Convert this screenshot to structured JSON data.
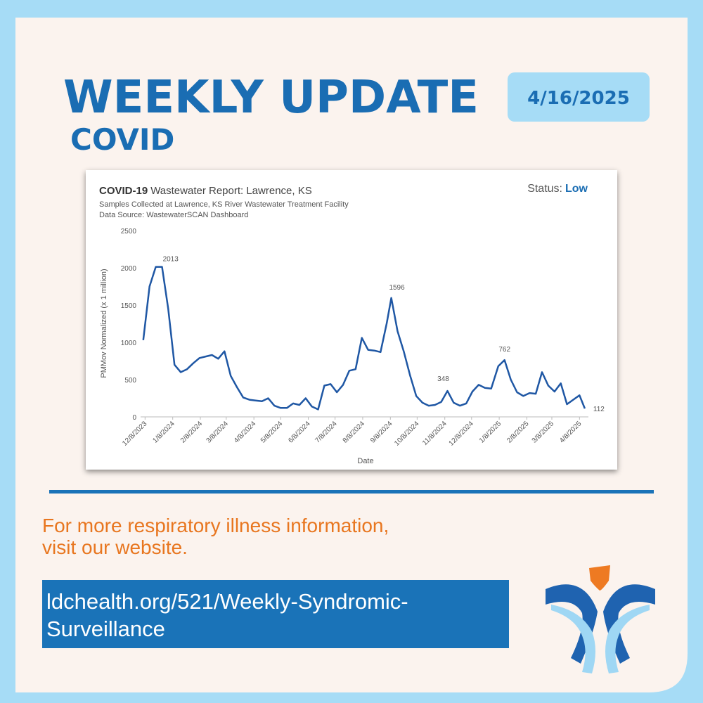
{
  "header": {
    "title": "WEEKLY UPDATE",
    "subtitle": "COVID",
    "date": "4/16/2025"
  },
  "chart_data": {
    "type": "line",
    "title_bold": "COVID-19",
    "title": "Wastewater Report: Lawrence, KS",
    "subtitle": "Samples Collected at Lawrence, KS River Wastewater Treatment Facility",
    "source": "Data Source: WastewaterSCAN Dashboard",
    "status_label": "Status:",
    "status": "Low",
    "xlabel": "Date",
    "ylabel": "PMMov Normalized (x 1 million)",
    "color": "#1f57a4",
    "x": [
      "12/6/2023",
      "12/13/2023",
      "12/20/2023",
      "12/27/2023",
      "1/3/2024",
      "1/10/2024",
      "1/17/2024",
      "1/24/2024",
      "1/31/2024",
      "2/7/2024",
      "2/14/2024",
      "2/21/2024",
      "2/28/2024",
      "3/6/2024",
      "3/13/2024",
      "3/20/2024",
      "3/27/2024",
      "4/3/2024",
      "4/10/2024",
      "4/17/2024",
      "4/24/2024",
      "5/1/2024",
      "5/8/2024",
      "5/15/2024",
      "5/22/2024",
      "5/29/2024",
      "6/5/2024",
      "6/12/2024",
      "6/19/2024",
      "6/26/2024",
      "7/3/2024",
      "7/10/2024",
      "7/17/2024",
      "7/24/2024",
      "7/31/2024",
      "8/7/2024",
      "8/14/2024",
      "8/21/2024",
      "8/28/2024",
      "9/4/2024",
      "9/9/2024",
      "9/16/2024",
      "9/23/2024",
      "9/30/2024",
      "10/7/2024",
      "10/14/2024",
      "10/21/2024",
      "10/28/2024",
      "11/4/2024",
      "11/11/2024",
      "11/18/2024",
      "11/25/2024",
      "12/2/2024",
      "12/9/2024",
      "12/16/2024",
      "12/23/2024",
      "12/30/2024",
      "1/7/2025",
      "1/14/2025",
      "1/21/2025",
      "1/28/2025",
      "2/4/2025",
      "2/11/2025",
      "2/18/2025",
      "2/25/2025",
      "3/4/2025",
      "3/11/2025",
      "3/18/2025",
      "3/25/2025",
      "4/1/2025",
      "4/8/2025",
      "4/14/2025"
    ],
    "values": [
      1030,
      1750,
      2013,
      2013,
      1450,
      700,
      600,
      640,
      720,
      790,
      810,
      830,
      780,
      880,
      550,
      400,
      260,
      230,
      220,
      210,
      250,
      150,
      120,
      120,
      180,
      160,
      250,
      140,
      100,
      420,
      440,
      330,
      430,
      620,
      640,
      1060,
      900,
      890,
      870,
      1260,
      1596,
      1150,
      880,
      560,
      280,
      190,
      150,
      160,
      200,
      348,
      190,
      150,
      180,
      340,
      430,
      390,
      380,
      680,
      762,
      500,
      330,
      280,
      320,
      310,
      600,
      420,
      340,
      450,
      170,
      230,
      290,
      112
    ],
    "xlim": [
      "12/3/2023",
      "4/18/2025"
    ],
    "xticks": [
      "12/8/2023",
      "1/8/2024",
      "2/8/2024",
      "3/8/2024",
      "4/8/2024",
      "5/8/2024",
      "6/8/2024",
      "7/8/2024",
      "8/8/2024",
      "9/8/2024",
      "10/8/2024",
      "11/8/2024",
      "12/8/2024",
      "1/8/2025",
      "2/8/2025",
      "3/8/2025",
      "4/8/2025"
    ],
    "ylim": [
      0,
      2500
    ],
    "yticks": [
      0,
      500,
      1000,
      1500,
      2000,
      2500
    ],
    "grid": false
  },
  "footer": {
    "text_lines": [
      "For more respiratory illness information,",
      "visit our website."
    ],
    "link_lines": [
      "ldchealth.org/521/Weekly-Syndromic-",
      "Surveillance"
    ]
  }
}
